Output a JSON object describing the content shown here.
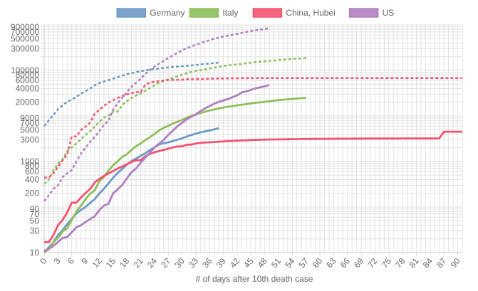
{
  "chart_data": {
    "type": "line",
    "title": "",
    "xlabel": "# of days after 10th death case",
    "ylabel": "",
    "y_scale": "log",
    "xlim": [
      0,
      91
    ],
    "ylim": [
      10,
      1000000
    ],
    "x_ticks": [
      0,
      3,
      6,
      9,
      12,
      15,
      18,
      21,
      24,
      27,
      30,
      33,
      36,
      39,
      42,
      45,
      48,
      51,
      54,
      57,
      60,
      63,
      66,
      69,
      72,
      75,
      78,
      81,
      84,
      87,
      90
    ],
    "y_tick_labels": [
      "900000",
      "700000",
      "500000",
      "300000",
      "100000",
      "80000",
      "60000",
      "40000",
      "20000",
      "9000",
      "7000",
      "5000",
      "3000",
      "1000",
      "800",
      "600",
      "400",
      "200",
      "90",
      "70",
      "50",
      "30",
      "10"
    ],
    "y_tick_values": [
      900000,
      700000,
      500000,
      300000,
      100000,
      80000,
      60000,
      40000,
      20000,
      9000,
      7000,
      5000,
      3000,
      1000,
      800,
      600,
      400,
      200,
      90,
      70,
      50,
      30,
      10
    ],
    "grid": true,
    "legend_position": "top",
    "series": [
      {
        "name": "Germany",
        "color": "#6b9ac4",
        "deaths": {
          "x": [
            0,
            1,
            2,
            3,
            4,
            5,
            6,
            7,
            8,
            9,
            10,
            11,
            12,
            13,
            14,
            15,
            16,
            17,
            18,
            19,
            20,
            21,
            22,
            23,
            24,
            25,
            26,
            27,
            28,
            29,
            30,
            31,
            32,
            33,
            34,
            35,
            36,
            37,
            38
          ],
          "y": [
            10,
            13,
            17,
            24,
            31,
            42,
            55,
            72,
            86,
            100,
            123,
            149,
            198,
            253,
            330,
            440,
            560,
            690,
            850,
            1020,
            1160,
            1340,
            1520,
            1780,
            2050,
            2360,
            2520,
            2640,
            2810,
            3020,
            3220,
            3540,
            3810,
            4090,
            4370,
            4570,
            4790,
            5090,
            5400
          ]
        },
        "cases": {
          "x": [
            0,
            1,
            2,
            3,
            4,
            5,
            6,
            7,
            8,
            9,
            10,
            11,
            12,
            13,
            14,
            15,
            16,
            17,
            18,
            19,
            20,
            21,
            22,
            23,
            24,
            25,
            26,
            27,
            28,
            29,
            30,
            31,
            32,
            33,
            34,
            35,
            36,
            37,
            38
          ],
          "y": [
            6000,
            8000,
            10500,
            14000,
            17000,
            20500,
            23000,
            26000,
            31000,
            35000,
            40000,
            47000,
            53000,
            57000,
            61000,
            66000,
            71000,
            77000,
            83000,
            87000,
            92000,
            96000,
            100000,
            104000,
            108000,
            110000,
            114000,
            117000,
            120000,
            122000,
            124000,
            126000,
            129000,
            132000,
            136000,
            139000,
            142000,
            145000,
            148000
          ]
        }
      },
      {
        "name": "Italy",
        "color": "#8ebf5a",
        "deaths": {
          "x": [
            0,
            1,
            2,
            3,
            4,
            5,
            6,
            7,
            8,
            9,
            10,
            11,
            12,
            13,
            14,
            15,
            16,
            17,
            18,
            19,
            20,
            21,
            22,
            23,
            24,
            25,
            26,
            27,
            28,
            29,
            30,
            31,
            32,
            33,
            34,
            35,
            36,
            37,
            38,
            39,
            40,
            41,
            42,
            43,
            44,
            45,
            46,
            47,
            48,
            49,
            50,
            51,
            52,
            53,
            54,
            55,
            56,
            57
          ],
          "y": [
            10,
            12,
            17,
            21,
            29,
            34,
            52,
            79,
            107,
            148,
            197,
            233,
            366,
            463,
            631,
            827,
            1016,
            1266,
            1441,
            1809,
            2158,
            2503,
            2978,
            3405,
            4032,
            4825,
            5476,
            6077,
            6820,
            7503,
            8165,
            9134,
            10023,
            10779,
            11591,
            12428,
            13155,
            13915,
            14681,
            15362,
            15887,
            16523,
            17127,
            17669,
            18279,
            18849,
            19468,
            19899,
            20465,
            21067,
            21645,
            22170,
            22745,
            23227,
            23660,
            24114,
            24648,
            25085
          ]
        },
        "cases": {
          "x": [
            0,
            1,
            2,
            3,
            4,
            5,
            6,
            7,
            8,
            9,
            10,
            11,
            12,
            13,
            14,
            15,
            16,
            17,
            18,
            19,
            20,
            21,
            22,
            23,
            24,
            25,
            26,
            27,
            28,
            29,
            30,
            31,
            32,
            33,
            34,
            35,
            36,
            37,
            38,
            39,
            40,
            41,
            42,
            43,
            44,
            45,
            46,
            47,
            48,
            49,
            50,
            51,
            52,
            53,
            54,
            55,
            56,
            57
          ],
          "y": [
            322,
            400,
            650,
            888,
            1128,
            1694,
            2036,
            2502,
            3089,
            3858,
            4636,
            5883,
            7375,
            9172,
            10149,
            12462,
            12462,
            17660,
            21157,
            24747,
            27980,
            31506,
            35713,
            41035,
            47021,
            53578,
            59138,
            63927,
            69176,
            74386,
            80589,
            86498,
            92472,
            97689,
            101739,
            105792,
            110574,
            115242,
            119827,
            124632,
            128948,
            132547,
            135586,
            139422,
            143626,
            147577,
            152271,
            156363,
            159516,
            162488,
            165155,
            168941,
            172434,
            175925,
            178972,
            181228,
            183957,
            187327
          ]
        }
      },
      {
        "name": "China, Hubei",
        "color": "#f2546f",
        "deaths": {
          "x": [
            0,
            1,
            2,
            3,
            4,
            5,
            6,
            7,
            8,
            9,
            10,
            11,
            12,
            13,
            14,
            15,
            16,
            17,
            18,
            19,
            20,
            21,
            22,
            23,
            24,
            25,
            26,
            27,
            28,
            29,
            30,
            31,
            32,
            33,
            34,
            35,
            36,
            37,
            38,
            39,
            40,
            41,
            42,
            43,
            44,
            45,
            46,
            47,
            48,
            49,
            50,
            51,
            52,
            53,
            54,
            55,
            56,
            57,
            58,
            59,
            60,
            61,
            62,
            63,
            64,
            65,
            66,
            67,
            68,
            69,
            70,
            71,
            72,
            73,
            74,
            75,
            76,
            77,
            78,
            79,
            80,
            81,
            82,
            83,
            84,
            85,
            86,
            87,
            88,
            89,
            90,
            91
          ],
          "y": [
            17,
            17,
            24,
            40,
            52,
            76,
            125,
            125,
            162,
            204,
            249,
            350,
            414,
            479,
            549,
            618,
            699,
            780,
            871,
            974,
            1068,
            1068,
            1310,
            1457,
            1596,
            1696,
            1789,
            1921,
            2029,
            2144,
            2144,
            2346,
            2346,
            2495,
            2563,
            2615,
            2641,
            2682,
            2727,
            2761,
            2803,
            2835,
            2871,
            2902,
            2931,
            2959,
            2986,
            3008,
            3024,
            3046,
            3056,
            3062,
            3075,
            3085,
            3099,
            3111,
            3122,
            3130,
            3133,
            3139,
            3153,
            3153,
            3160,
            3163,
            3169,
            3174,
            3177,
            3182,
            3186,
            3187,
            3193,
            3199,
            3203,
            3207,
            3210,
            3212,
            3212,
            3213,
            3215,
            3215,
            3216,
            3219,
            3219,
            3219,
            3219,
            3222,
            3222,
            4512,
            4512,
            4512,
            4512,
            4512
          ]
        },
        "cases": {
          "x": [
            0,
            1,
            2,
            3,
            4,
            5,
            6,
            7,
            8,
            9,
            10,
            11,
            12,
            13,
            14,
            15,
            16,
            17,
            18,
            19,
            20,
            21,
            22,
            23,
            24,
            25,
            26,
            27,
            28,
            29,
            30,
            31,
            32,
            33,
            34,
            35,
            36,
            37,
            38,
            39,
            40,
            41,
            42,
            43,
            44,
            45,
            46,
            47,
            48,
            49,
            50,
            51,
            52,
            53,
            54,
            55,
            56,
            57,
            58,
            59,
            60,
            61,
            62,
            63,
            64,
            65,
            66,
            67,
            68,
            69,
            70,
            71,
            72,
            73,
            74,
            75,
            76,
            77,
            78,
            79,
            80,
            81,
            82,
            83,
            84,
            85,
            86,
            87,
            88,
            89,
            90,
            91
          ],
          "y": [
            444,
            444,
            549,
            761,
            1058,
            1423,
            3554,
            3554,
            4903,
            5806,
            7153,
            11177,
            13522,
            16678,
            19665,
            22112,
            24953,
            27100,
            29631,
            31728,
            33366,
            33366,
            48206,
            54406,
            56249,
            58182,
            59989,
            61682,
            62031,
            62442,
            62662,
            64084,
            64084,
            64287,
            64786,
            65187,
            65596,
            65914,
            66337,
            66907,
            67103,
            67217,
            67332,
            67466,
            67592,
            67666,
            67707,
            67743,
            67760,
            67773,
            67781,
            67786,
            67790,
            67794,
            67798,
            67799,
            67800,
            67800,
            67800,
            67800,
            67800,
            67801,
            67801,
            67801,
            67801,
            67801,
            67801,
            67801,
            67802,
            67802,
            67802,
            67802,
            67803,
            67803,
            67803,
            67803,
            67803,
            67803,
            67803,
            67803,
            67803,
            67803,
            67803,
            67803,
            67803,
            67803,
            67803,
            68128,
            68128,
            68128,
            68128,
            68128
          ]
        }
      },
      {
        "name": "US",
        "color": "#b07fc0",
        "deaths": {
          "x": [
            0,
            1,
            2,
            3,
            4,
            5,
            6,
            7,
            8,
            9,
            10,
            11,
            12,
            13,
            14,
            15,
            16,
            17,
            18,
            19,
            20,
            21,
            22,
            23,
            24,
            25,
            26,
            27,
            28,
            29,
            30,
            31,
            32,
            33,
            34,
            35,
            36,
            37,
            38,
            39,
            40,
            41,
            42,
            43,
            44,
            45,
            46,
            47,
            48,
            49
          ],
          "y": [
            11,
            12,
            14,
            17,
            21,
            22,
            28,
            36,
            40,
            47,
            54,
            63,
            85,
            108,
            118,
            200,
            244,
            307,
            427,
            581,
            706,
            942,
            1209,
            1581,
            2026,
            2467,
            2978,
            3873,
            4757,
            5926,
            7087,
            8407,
            9619,
            10783,
            12722,
            14695,
            16478,
            18586,
            20463,
            22020,
            23529,
            25831,
            28325,
            32916,
            34852,
            37428,
            40478,
            42514,
            45075,
            47659
          ]
        },
        "cases": {
          "x": [
            0,
            1,
            2,
            3,
            4,
            5,
            6,
            7,
            8,
            9,
            10,
            11,
            12,
            13,
            14,
            15,
            16,
            17,
            18,
            19,
            20,
            21,
            22,
            23,
            24,
            25,
            26,
            27,
            28,
            29,
            30,
            31,
            32,
            33,
            34,
            35,
            36,
            37,
            38,
            39,
            40,
            41,
            42,
            43,
            44,
            45,
            46,
            47,
            48,
            49
          ],
          "y": [
            135,
            180,
            250,
            300,
            450,
            550,
            650,
            1000,
            1500,
            2000,
            2700,
            3500,
            4600,
            6400,
            7800,
            13700,
            19100,
            25500,
            33300,
            43800,
            53700,
            65800,
            83800,
            101700,
            121500,
            140900,
            161800,
            188200,
            213400,
            243600,
            275600,
            308900,
            337100,
            366600,
            396200,
            429000,
            461400,
            496500,
            526400,
            555300,
            580600,
            607700,
            636400,
            667800,
            699700,
            732200,
            759100,
            784300,
            811900,
            840300
          ]
        }
      }
    ]
  }
}
